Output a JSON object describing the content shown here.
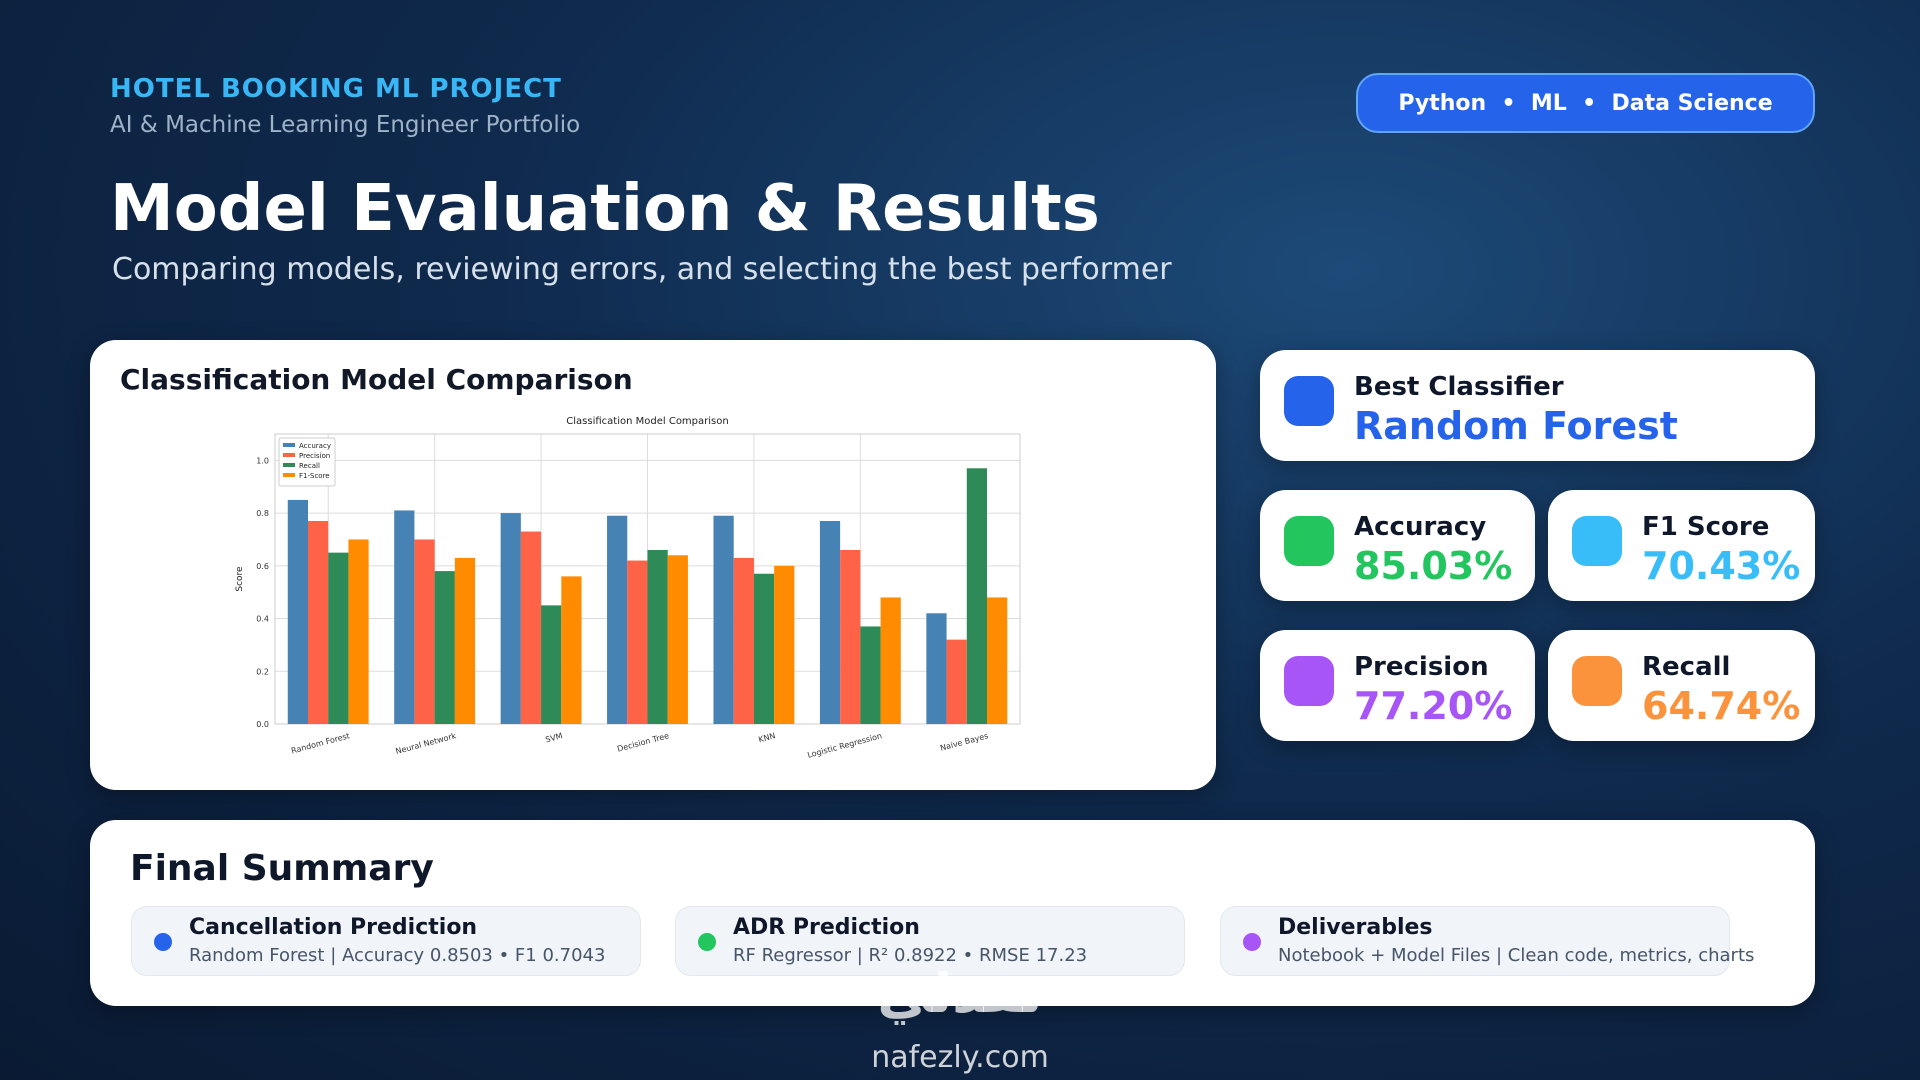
{
  "header": {
    "project": "HOTEL BOOKING ML PROJECT",
    "role": "AI & Machine Learning Engineer Portfolio",
    "badge": "Python  •  ML  •  Data Science"
  },
  "title": "Model Evaluation & Results",
  "subtitle": "Comparing models, reviewing errors, and selecting the best performer",
  "chart_card": {
    "title": "Classification Model Comparison"
  },
  "chart_data": {
    "type": "bar",
    "title": "Classification Model Comparison",
    "y_label": "Score",
    "categories": [
      "Random Forest",
      "Neural Network",
      "SVM",
      "Decision Tree",
      "KNN",
      "Logistic Regression",
      "Naive Bayes"
    ],
    "series": [
      {
        "name": "Accuracy",
        "color": "#4682b4",
        "values": [
          0.85,
          0.81,
          0.8,
          0.79,
          0.79,
          0.77,
          0.42
        ]
      },
      {
        "name": "Precision",
        "color": "#ff6347",
        "values": [
          0.77,
          0.7,
          0.73,
          0.62,
          0.63,
          0.66,
          0.32
        ]
      },
      {
        "name": "Recall",
        "color": "#2e8b57",
        "values": [
          0.65,
          0.58,
          0.45,
          0.66,
          0.57,
          0.37,
          0.97
        ]
      },
      {
        "name": "F1-Score",
        "color": "#ff8c00",
        "values": [
          0.7,
          0.63,
          0.56,
          0.64,
          0.6,
          0.48,
          0.48
        ]
      }
    ],
    "ylim": [
      0,
      1.1
    ],
    "yticks": [
      {
        "value": 0,
        "label": "0.0"
      },
      0.2,
      0.4,
      0.6,
      0.8,
      {
        "value": 1,
        "label": "1.0"
      }
    ],
    "grid": true,
    "legend": "upper-left"
  },
  "best": {
    "label": "Best Classifier",
    "value": "Random Forest"
  },
  "metrics": [
    {
      "label": "Accuracy",
      "value": "85.03%"
    },
    {
      "label": "F1 Score",
      "value": "70.43%"
    },
    {
      "label": "Precision",
      "value": "77.20%"
    },
    {
      "label": "Recall",
      "value": "64.74%"
    }
  ],
  "summary": {
    "title": "Final Summary",
    "items": [
      {
        "title": "Cancellation Prediction",
        "detail": "Random Forest | Accuracy 0.8503  •  F1 0.7043"
      },
      {
        "title": "ADR Prediction",
        "detail": "RF Regressor | R² 0.8922  •  RMSE 17.23"
      },
      {
        "title": "Deliverables",
        "detail": "Notebook + Model Files | Clean code, metrics, charts"
      }
    ]
  },
  "watermark": {
    "logo": "نفذلي",
    "site": "nafezly.com"
  }
}
